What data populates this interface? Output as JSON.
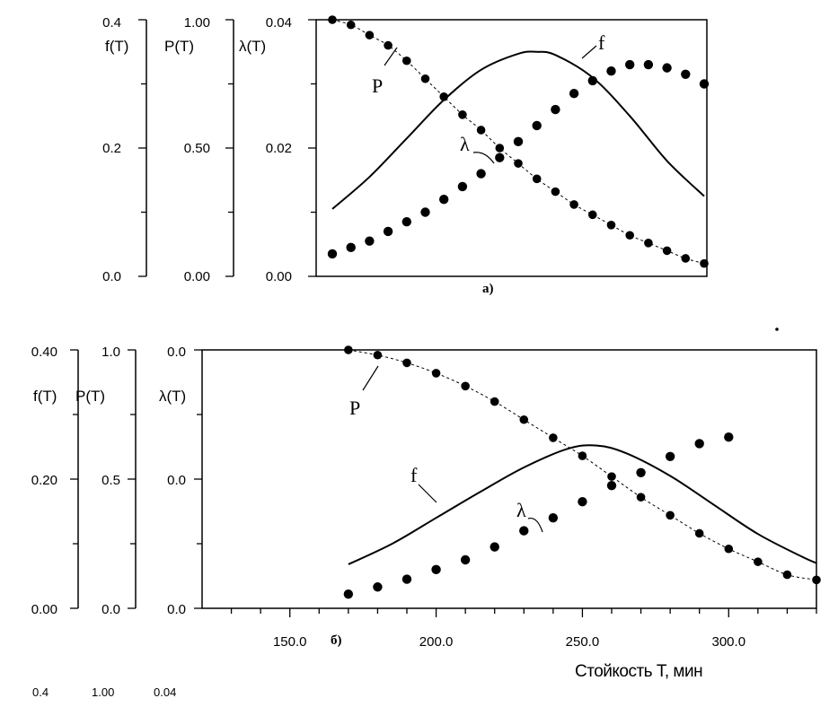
{
  "chart_data": [
    {
      "id": "a",
      "type": "line",
      "caption": "а)",
      "x_tick_labels": [],
      "y_axes": [
        {
          "label": "f(T)",
          "ticks": [
            "0.0",
            "0.2",
            "0.4"
          ],
          "ylim": [
            0,
            0.4
          ]
        },
        {
          "label": "P(T)",
          "ticks": [
            "0.00",
            "0.50",
            "1.00"
          ],
          "ylim": [
            0,
            1.0
          ]
        },
        {
          "label": "λ(T)",
          "ticks": [
            "0.00",
            "0.02",
            "0.04"
          ],
          "ylim": [
            0,
            0.04
          ]
        }
      ],
      "series": [
        {
          "name": "P",
          "axis": "P(T)",
          "style": "dotted",
          "points": [
            [
              0,
              1.0
            ],
            [
              0.05,
              0.98
            ],
            [
              0.1,
              0.94
            ],
            [
              0.15,
              0.9
            ],
            [
              0.2,
              0.84
            ],
            [
              0.25,
              0.77
            ],
            [
              0.3,
              0.7
            ],
            [
              0.35,
              0.63
            ],
            [
              0.4,
              0.57
            ],
            [
              0.45,
              0.5
            ],
            [
              0.5,
              0.44
            ],
            [
              0.55,
              0.38
            ],
            [
              0.6,
              0.33
            ],
            [
              0.65,
              0.28
            ],
            [
              0.7,
              0.24
            ],
            [
              0.75,
              0.2
            ],
            [
              0.8,
              0.16
            ],
            [
              0.85,
              0.13
            ],
            [
              0.9,
              0.1
            ],
            [
              0.95,
              0.07
            ],
            [
              1.0,
              0.05
            ]
          ]
        },
        {
          "name": "f",
          "axis": "f(T)",
          "style": "solid",
          "points": [
            [
              0,
              0.105
            ],
            [
              0.1,
              0.155
            ],
            [
              0.2,
              0.215
            ],
            [
              0.3,
              0.275
            ],
            [
              0.4,
              0.322
            ],
            [
              0.5,
              0.347
            ],
            [
              0.55,
              0.35
            ],
            [
              0.6,
              0.345
            ],
            [
              0.7,
              0.31
            ],
            [
              0.8,
              0.25
            ],
            [
              0.9,
              0.18
            ],
            [
              1.0,
              0.125
            ]
          ]
        },
        {
          "name": "λ",
          "axis": "λ(T)",
          "style": "dots",
          "points": [
            [
              0,
              0.0035
            ],
            [
              0.05,
              0.0045
            ],
            [
              0.1,
              0.0055
            ],
            [
              0.15,
              0.007
            ],
            [
              0.2,
              0.0085
            ],
            [
              0.25,
              0.01
            ],
            [
              0.3,
              0.012
            ],
            [
              0.35,
              0.014
            ],
            [
              0.4,
              0.016
            ],
            [
              0.45,
              0.0185
            ],
            [
              0.5,
              0.021
            ],
            [
              0.55,
              0.0235
            ],
            [
              0.6,
              0.026
            ],
            [
              0.65,
              0.0285
            ],
            [
              0.7,
              0.0305
            ],
            [
              0.75,
              0.032
            ],
            [
              0.8,
              0.033
            ],
            [
              0.85,
              0.033
            ],
            [
              0.9,
              0.0325
            ],
            [
              0.95,
              0.0315
            ],
            [
              1.0,
              0.03
            ]
          ]
        }
      ]
    },
    {
      "id": "b",
      "type": "line",
      "caption": "б)",
      "xlabel": "Стойкость Т, мин",
      "xlim": [
        120,
        330
      ],
      "x_tick_labels": [
        "150.0",
        "200.0",
        "250.0",
        "300.0"
      ],
      "x_ticks": [
        150,
        200,
        250,
        300
      ],
      "x_minor_step": 10,
      "y_axes": [
        {
          "label": "f(T)",
          "ticks": [
            "0.00",
            "0.20",
            "0.40"
          ],
          "ylim": [
            0,
            0.4
          ]
        },
        {
          "label": "P(T)",
          "ticks": [
            "0.0",
            "0.5",
            "1.0"
          ],
          "ylim": [
            0,
            1.0
          ]
        },
        {
          "label": "λ(T)",
          "ticks": [
            "0.0",
            "0.0",
            "0.0"
          ],
          "ylim": [
            0,
            0.04
          ]
        }
      ],
      "series": [
        {
          "name": "P",
          "axis": "P(T)",
          "style": "dotted",
          "points": [
            [
              170,
              1.0
            ],
            [
              180,
              0.98
            ],
            [
              190,
              0.95
            ],
            [
              200,
              0.91
            ],
            [
              210,
              0.86
            ],
            [
              220,
              0.8
            ],
            [
              230,
              0.73
            ],
            [
              240,
              0.66
            ],
            [
              250,
              0.59
            ],
            [
              260,
              0.51
            ],
            [
              270,
              0.43
            ],
            [
              280,
              0.36
            ],
            [
              290,
              0.29
            ],
            [
              300,
              0.23
            ],
            [
              310,
              0.18
            ],
            [
              320,
              0.13
            ],
            [
              330,
              0.11
            ]
          ]
        },
        {
          "name": "f",
          "axis": "f(T)",
          "style": "solid",
          "points": [
            [
              170,
              0.068
            ],
            [
              185,
              0.1
            ],
            [
              200,
              0.14
            ],
            [
              215,
              0.18
            ],
            [
              230,
              0.218
            ],
            [
              245,
              0.247
            ],
            [
              255,
              0.252
            ],
            [
              265,
              0.24
            ],
            [
              280,
              0.205
            ],
            [
              295,
              0.16
            ],
            [
              310,
              0.115
            ],
            [
              325,
              0.08
            ],
            [
              330,
              0.07
            ]
          ]
        },
        {
          "name": "λ",
          "axis": "λ(T)",
          "style": "dots",
          "points": [
            [
              170,
              0.0022
            ],
            [
              180,
              0.0033
            ],
            [
              190,
              0.0045
            ],
            [
              200,
              0.006
            ],
            [
              210,
              0.0075
            ],
            [
              220,
              0.0095
            ],
            [
              230,
              0.012
            ],
            [
              240,
              0.014
            ],
            [
              250,
              0.0165
            ],
            [
              260,
              0.019
            ],
            [
              270,
              0.021
            ],
            [
              280,
              0.0235
            ],
            [
              290,
              0.0255
            ],
            [
              300,
              0.0265
            ]
          ]
        }
      ]
    }
  ],
  "bottom_row": [
    "0.4",
    "1.00",
    "0.04"
  ]
}
